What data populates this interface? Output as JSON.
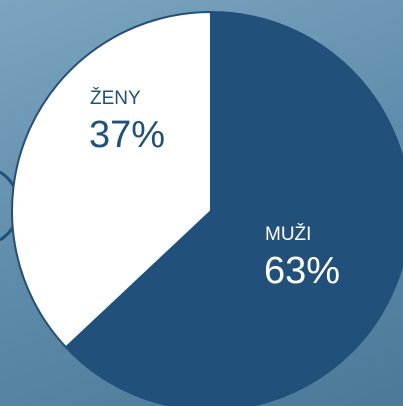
{
  "chart_data": {
    "type": "pie",
    "categories": [
      "MUŽI",
      "ŽENY"
    ],
    "values": [
      63,
      37
    ],
    "value_labels": [
      "63%",
      "37%"
    ],
    "colors": [
      "#21507a",
      "#ffffff"
    ]
  }
}
